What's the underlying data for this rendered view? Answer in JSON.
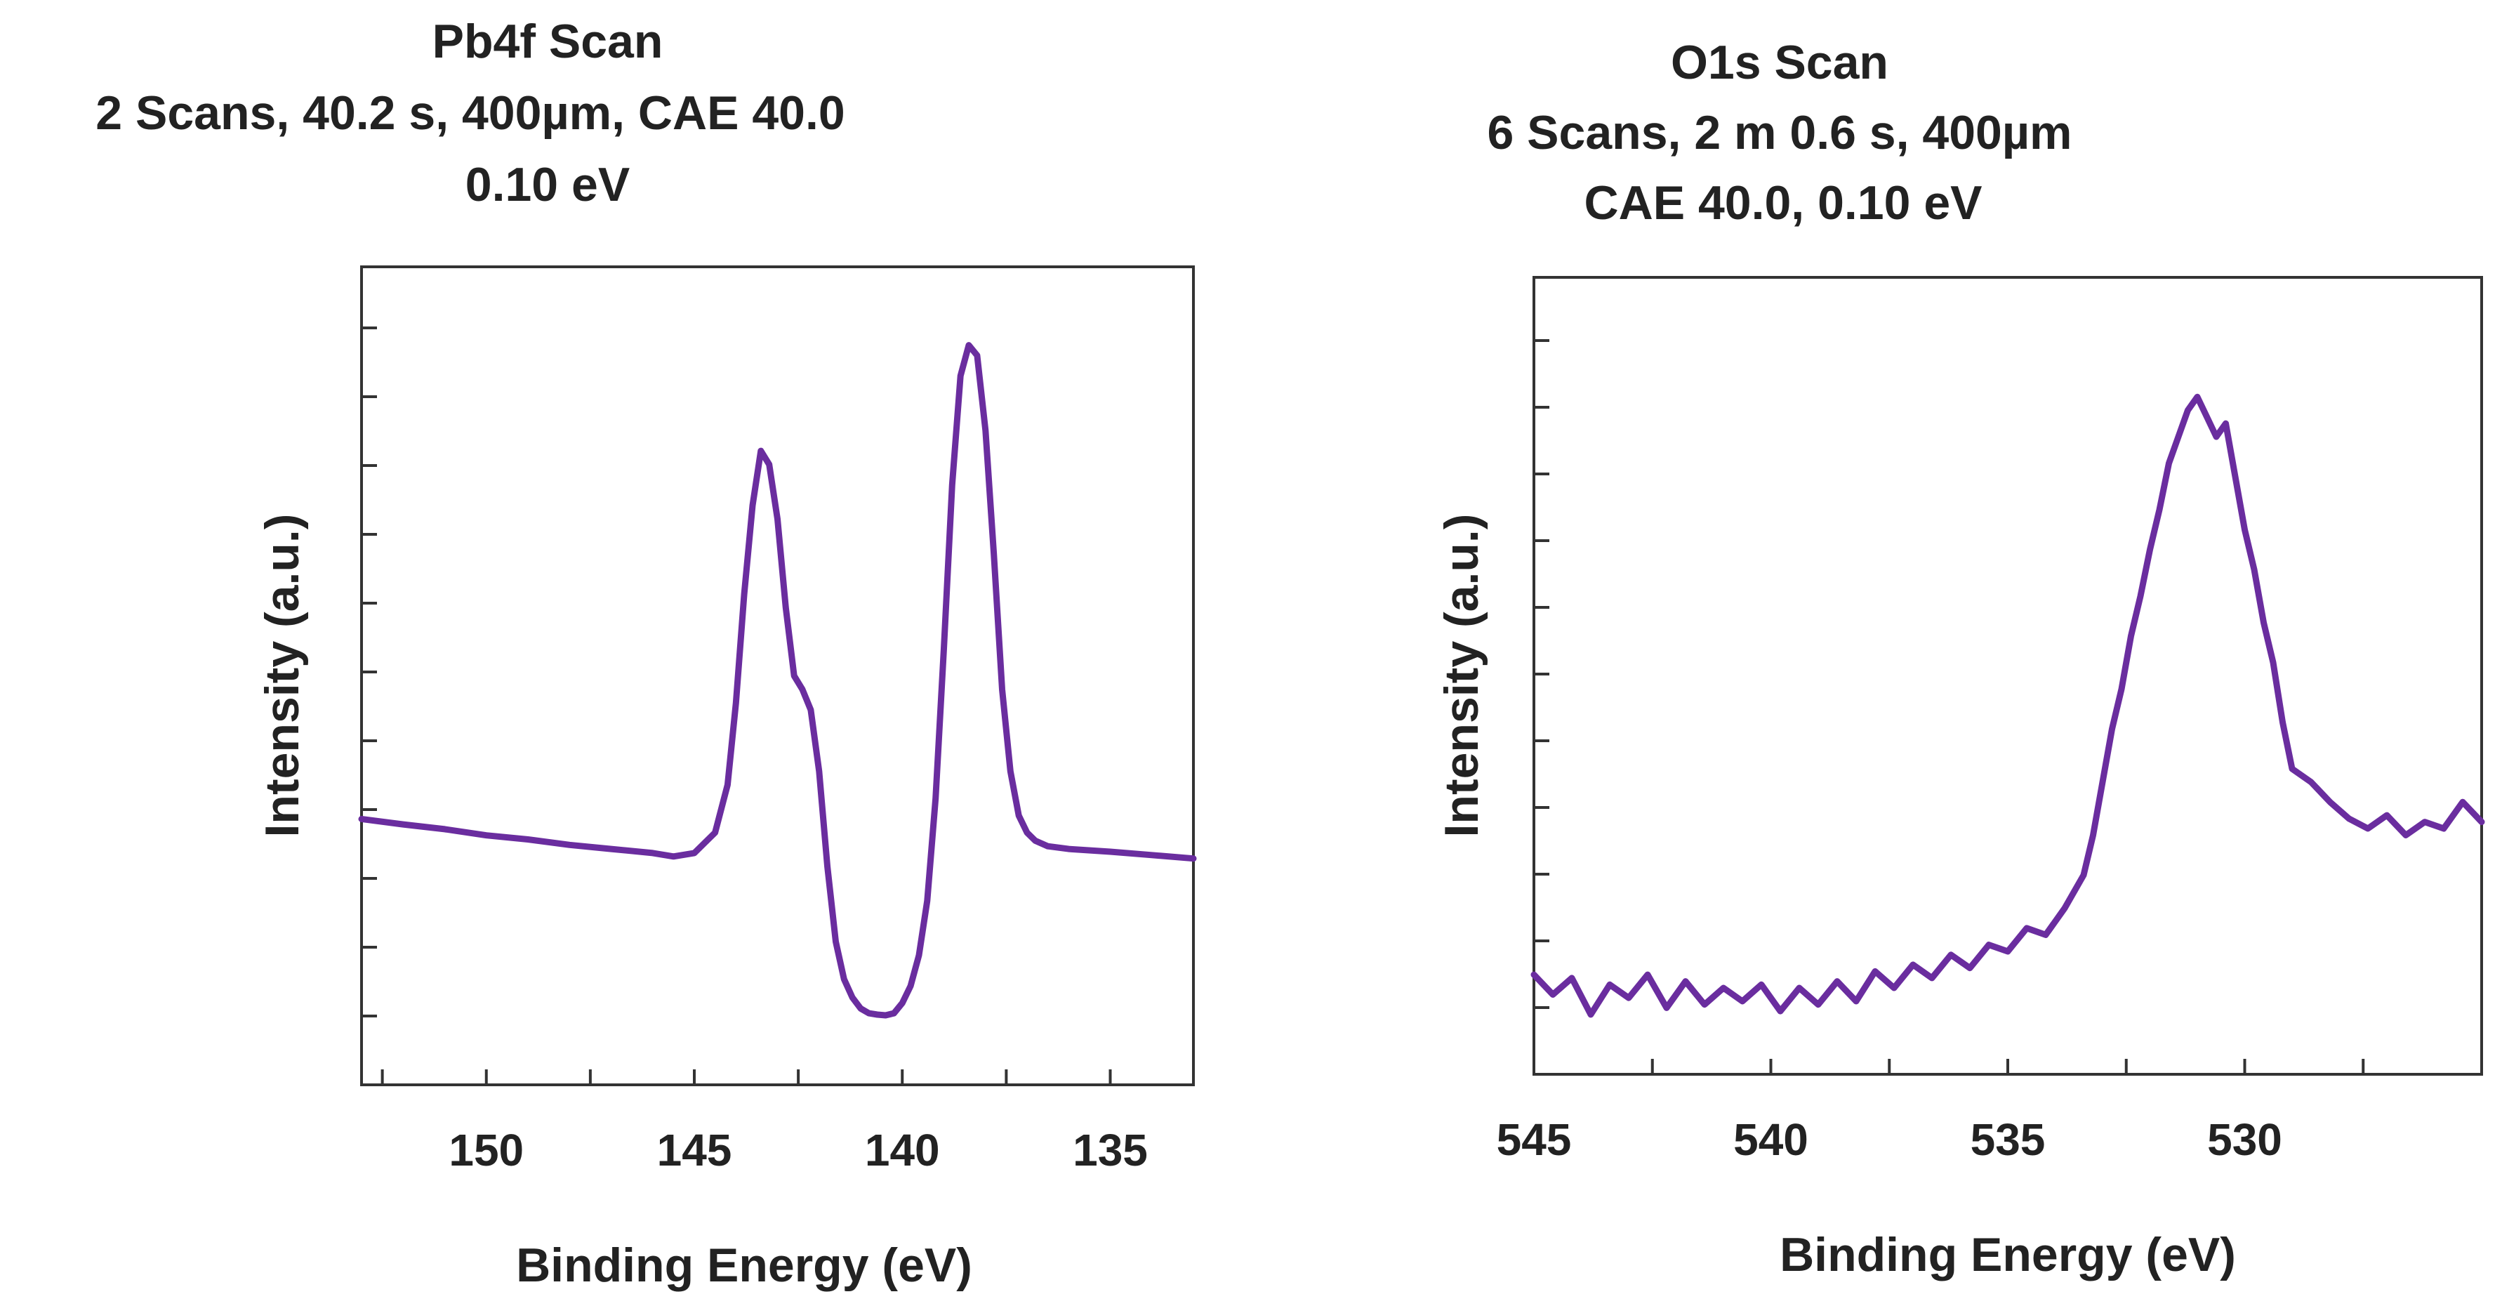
{
  "chart_data": [
    {
      "type": "line",
      "title_lines": [
        "Pb4f Scan",
        "2 Scans,  40.2 s,  400µm,  CAE 40.0",
        "0.10 eV"
      ],
      "xlabel": "Binding Energy (eV)",
      "ylabel": "Intensity (a.u.)",
      "x_reversed": true,
      "xlim": [
        153,
        133
      ],
      "ylim": [
        0,
        12
      ],
      "xticks": [
        150,
        145,
        140,
        135
      ],
      "xtick_labels": [
        "150",
        "145",
        "140",
        "135"
      ],
      "line_color": "#6a2d9f",
      "series": [
        {
          "name": "Pb4f",
          "x": [
            153,
            152,
            151,
            150,
            149,
            148,
            147,
            146,
            145.5,
            145,
            144.5,
            144.2,
            144,
            143.8,
            143.6,
            143.4,
            143.2,
            143,
            142.8,
            142.6,
            142.4,
            142.2,
            142,
            141.8,
            141.6,
            141.4,
            141.2,
            141,
            140.8,
            140.6,
            140.4,
            140.2,
            140,
            139.8,
            139.6,
            139.4,
            139.2,
            139,
            138.8,
            138.6,
            138.4,
            138.2,
            138,
            137.8,
            137.6,
            137.4,
            137.2,
            137,
            136.8,
            136.5,
            136,
            135,
            134,
            133
          ],
          "y": [
            3.9,
            3.82,
            3.75,
            3.66,
            3.6,
            3.52,
            3.46,
            3.4,
            3.35,
            3.4,
            3.7,
            4.4,
            5.6,
            7.2,
            8.5,
            9.3,
            9.1,
            8.3,
            7.0,
            6.0,
            5.8,
            5.5,
            4.6,
            3.2,
            2.1,
            1.55,
            1.28,
            1.12,
            1.05,
            1.03,
            1.02,
            1.05,
            1.2,
            1.45,
            1.9,
            2.7,
            4.2,
            6.4,
            8.8,
            10.4,
            10.85,
            10.7,
            9.6,
            7.8,
            5.8,
            4.6,
            3.95,
            3.7,
            3.58,
            3.5,
            3.46,
            3.42,
            3.37,
            3.32
          ]
        }
      ]
    },
    {
      "type": "line",
      "title_lines": [
        "O1s Scan",
        "6 Scans,  2 m 0.6 s,  400µm",
        "CAE 40.0,  0.10 eV"
      ],
      "xlabel": "Binding Energy (eV)",
      "ylabel": "Intensity (a.u.)",
      "x_reversed": true,
      "xlim": [
        545,
        525
      ],
      "ylim": [
        0,
        12
      ],
      "xticks": [
        545,
        540,
        535,
        530
      ],
      "xtick_labels": [
        "545",
        "540",
        "535",
        "530"
      ],
      "line_color": "#6a2d9f",
      "series": [
        {
          "name": "O1s",
          "x": [
            545,
            544.6,
            544.2,
            543.8,
            543.4,
            543,
            542.6,
            542.2,
            541.8,
            541.4,
            541,
            540.6,
            540.2,
            539.8,
            539.4,
            539,
            538.6,
            538.2,
            537.8,
            537.4,
            537,
            536.6,
            536.2,
            535.8,
            535.4,
            535,
            534.6,
            534.2,
            533.8,
            533.4,
            533.2,
            533,
            532.8,
            532.6,
            532.4,
            532.2,
            532,
            531.8,
            531.6,
            531.4,
            531.2,
            531,
            530.8,
            530.6,
            530.4,
            530.2,
            530,
            529.8,
            529.6,
            529.4,
            529.2,
            529,
            528.6,
            528.2,
            527.8,
            527.4,
            527,
            526.6,
            526.2,
            525.8,
            525.4,
            525
          ],
          "y": [
            1.5,
            1.2,
            1.45,
            0.9,
            1.35,
            1.15,
            1.5,
            1.0,
            1.4,
            1.05,
            1.3,
            1.1,
            1.35,
            0.95,
            1.3,
            1.05,
            1.4,
            1.1,
            1.55,
            1.3,
            1.65,
            1.45,
            1.8,
            1.6,
            1.95,
            1.85,
            2.2,
            2.1,
            2.5,
            3.0,
            3.6,
            4.4,
            5.2,
            5.8,
            6.6,
            7.2,
            7.9,
            8.5,
            9.2,
            9.6,
            10.0,
            10.2,
            9.9,
            9.6,
            9.8,
            9.0,
            8.2,
            7.6,
            6.8,
            6.2,
            5.3,
            4.6,
            4.4,
            4.1,
            3.85,
            3.7,
            3.9,
            3.6,
            3.8,
            3.7,
            4.1,
            3.8
          ]
        }
      ]
    }
  ]
}
